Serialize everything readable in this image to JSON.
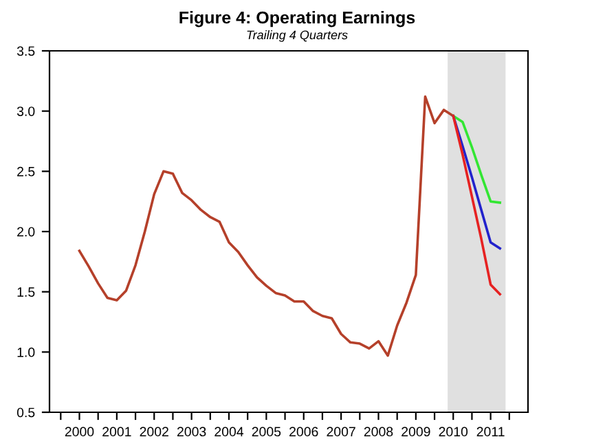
{
  "chart_data": {
    "type": "line",
    "title": "Figure 4: Operating Earnings",
    "subtitle": "Trailing 4 Quarters",
    "series": [
      {
        "color": "#b5402a",
        "x": [
          2000.5,
          2000.75,
          2001.0,
          2001.25,
          2001.5,
          2001.75,
          2002.0,
          2002.25,
          2002.5,
          2002.75,
          2003.0,
          2003.25,
          2003.5,
          2003.75,
          2004.0,
          2004.25,
          2004.5,
          2004.75,
          2005.0,
          2005.25,
          2005.5,
          2005.75,
          2006.0,
          2006.25,
          2006.5,
          2006.75,
          2007.0,
          2007.25,
          2007.5,
          2007.75,
          2008.0,
          2008.25,
          2008.5,
          2008.75,
          2009.0,
          2009.25,
          2009.5,
          2009.75,
          2010.0,
          2010.25,
          2010.5
        ],
        "values": [
          1.84,
          1.71,
          1.57,
          1.45,
          1.43,
          1.51,
          1.72,
          2.0,
          2.31,
          2.5,
          2.48,
          2.32,
          2.26,
          2.18,
          2.12,
          2.08,
          1.91,
          1.83,
          1.72,
          1.62,
          1.55,
          1.49,
          1.47,
          1.42,
          1.42,
          1.34,
          1.3,
          1.28,
          1.15,
          1.08,
          1.07,
          1.03,
          1.09,
          0.97,
          1.22,
          1.41,
          1.64,
          3.12,
          2.9,
          3.01,
          2.96
        ]
      },
      {
        "color": "#33e633",
        "x": [
          2010.5,
          2010.75,
          2011.0,
          2011.25,
          2011.5,
          2011.75
        ],
        "values": [
          2.96,
          2.91,
          2.7,
          2.47,
          2.25,
          2.24
        ]
      },
      {
        "color": "#2222cc",
        "x": [
          2010.5,
          2010.75,
          2011.0,
          2011.25,
          2011.5,
          2011.75
        ],
        "values": [
          2.96,
          2.71,
          2.45,
          2.18,
          1.91,
          1.86
        ]
      },
      {
        "color": "#e62222",
        "x": [
          2010.5,
          2010.75,
          2011.0,
          2011.25,
          2011.5,
          2011.75
        ],
        "values": [
          2.96,
          2.64,
          2.29,
          1.94,
          1.56,
          1.48
        ]
      }
    ],
    "bands": [
      {
        "axis": "x",
        "from": 2010.35,
        "to": 2011.9,
        "color": "#e0e0e0"
      }
    ],
    "xlim": [
      1999.7,
      2012.5
    ],
    "xticks": [
      {
        "value": 2000,
        "label": null
      },
      {
        "value": 2001,
        "label": null
      },
      {
        "value": 2002,
        "label": null
      },
      {
        "value": 2003,
        "label": null
      },
      {
        "value": 2004,
        "label": null
      },
      {
        "value": 2005,
        "label": null
      },
      {
        "value": 2006,
        "label": null
      },
      {
        "value": 2007,
        "label": null
      },
      {
        "value": 2008,
        "label": null
      },
      {
        "value": 2009,
        "label": null
      },
      {
        "value": 2010,
        "label": null
      },
      {
        "value": 2011,
        "label": null
      },
      {
        "value": 2012,
        "label": null
      },
      {
        "value": 2000.5,
        "label": "2000"
      },
      {
        "value": 2001.5,
        "label": "2001"
      },
      {
        "value": 2002.5,
        "label": "2002"
      },
      {
        "value": 2003.5,
        "label": "2003"
      },
      {
        "value": 2004.5,
        "label": "2004"
      },
      {
        "value": 2005.5,
        "label": "2005"
      },
      {
        "value": 2006.5,
        "label": "2006"
      },
      {
        "value": 2007.5,
        "label": "2007"
      },
      {
        "value": 2008.5,
        "label": "2008"
      },
      {
        "value": 2009.5,
        "label": "2009"
      },
      {
        "value": 2010.5,
        "label": "2010"
      },
      {
        "value": 2011.5,
        "label": "2011"
      }
    ],
    "ylim": [
      0.5,
      3.5
    ],
    "yticks": [
      0.5,
      {
        "value": 1,
        "label": "1.0"
      },
      1.5,
      {
        "value": 2,
        "label": "2.0"
      },
      2.5,
      {
        "value": 3,
        "label": "3.0"
      },
      3.5
    ],
    "grid": false,
    "marker": "none",
    "line_style": "solid"
  }
}
